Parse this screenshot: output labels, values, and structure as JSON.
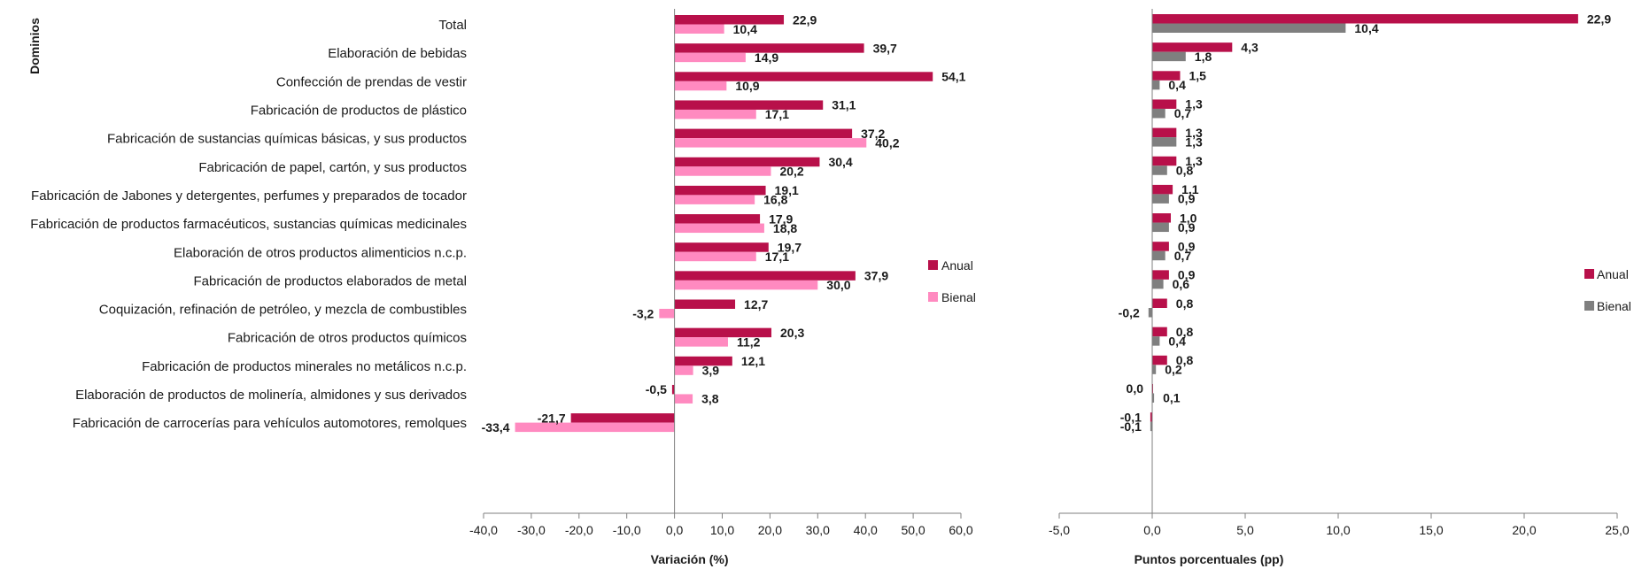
{
  "y_axis_title": "Dominios",
  "colors": {
    "anual": "#B8104A",
    "bienal_left": "#FF8AC0",
    "bienal_right": "#7F7F7F",
    "axis": "#7F7F7F"
  },
  "chart_data": [
    {
      "type": "bar",
      "orientation": "horizontal",
      "xlabel": "Variación (%)",
      "xlim": [
        -40,
        60
      ],
      "xticks": [
        "-40,0",
        "-30,0",
        "-20,0",
        "-10,0",
        "0,0",
        "10,0",
        "20,0",
        "30,0",
        "40,0",
        "50,0",
        "60,0"
      ],
      "legend": {
        "placement": "right",
        "entries": [
          "Anual",
          "Bienal"
        ]
      },
      "categories": [
        "Total",
        "Elaboración de bebidas",
        "Confección de prendas de vestir",
        "Fabricación de productos de plástico",
        "Fabricación de sustancias químicas básicas, y sus productos",
        "Fabricación de papel, cartón, y sus productos",
        "Fabricación de Jabones y detergentes, perfumes y preparados de tocador",
        "Fabricación de productos farmacéuticos, sustancias químicas medicinales",
        "Elaboración de otros productos alimenticios n.c.p.",
        "Fabricación de productos elaborados de metal",
        "Coquización, refinación de petróleo, y mezcla de combustibles",
        "Fabricación de otros productos químicos",
        "Fabricación de productos minerales no metálicos n.c.p.",
        "Elaboración de productos de molinería, almidones y sus derivados",
        "Fabricación de carrocerías para vehículos automotores, remolques"
      ],
      "series": [
        {
          "name": "Anual",
          "values": [
            22.9,
            39.7,
            54.1,
            31.1,
            37.2,
            30.4,
            19.1,
            17.9,
            19.7,
            37.9,
            12.7,
            20.3,
            12.1,
            -0.5,
            -21.7
          ],
          "labels": [
            "22,9",
            "39,7",
            "54,1",
            "31,1",
            "37,2",
            "30,4",
            "19,1",
            "17,9",
            "19,7",
            "37,9",
            "12,7",
            "20,3",
            "12,1",
            "-0,5",
            "-21,7"
          ]
        },
        {
          "name": "Bienal",
          "values": [
            10.4,
            14.9,
            10.9,
            17.1,
            40.2,
            20.2,
            16.8,
            18.8,
            17.1,
            30.0,
            -3.2,
            11.2,
            3.9,
            3.8,
            -33.4
          ],
          "labels": [
            "10,4",
            "14,9",
            "10,9",
            "17,1",
            "40,2",
            "20,2",
            "16,8",
            "18,8",
            "17,1",
            "30,0",
            "-3,2",
            "11,2",
            "3,9",
            "3,8",
            "-33,4"
          ]
        }
      ]
    },
    {
      "type": "bar",
      "orientation": "horizontal",
      "xlabel": "Puntos porcentuales (pp)",
      "xlim": [
        -5,
        25
      ],
      "xticks": [
        "-5,0",
        "0,0",
        "5,0",
        "10,0",
        "15,0",
        "20,0",
        "25,0"
      ],
      "legend": {
        "placement": "right",
        "entries": [
          "Anual",
          "Bienal"
        ]
      },
      "series": [
        {
          "name": "Anual",
          "values": [
            22.9,
            4.3,
            1.5,
            1.3,
            1.3,
            1.3,
            1.1,
            1.0,
            0.9,
            0.9,
            0.8,
            0.8,
            0.8,
            0.0,
            -0.1
          ],
          "labels": [
            "22,9",
            "4,3",
            "1,5",
            "1,3",
            "1,3",
            "1,3",
            "1,1",
            "1,0",
            "0,9",
            "0,9",
            "0,8",
            "0,8",
            "0,8",
            "0,0",
            "-0,1"
          ]
        },
        {
          "name": "Bienal",
          "values": [
            10.4,
            1.8,
            0.4,
            0.7,
            1.3,
            0.8,
            0.9,
            0.9,
            0.7,
            0.6,
            -0.2,
            0.4,
            0.2,
            0.1,
            -0.1
          ],
          "labels": [
            "10,4",
            "1,8",
            "0,4",
            "0,7",
            "1,3",
            "0,8",
            "0,9",
            "0,9",
            "0,7",
            "0,6",
            "-0,2",
            "0,4",
            "0,2",
            "0,1",
            "-0,1"
          ]
        }
      ]
    }
  ]
}
